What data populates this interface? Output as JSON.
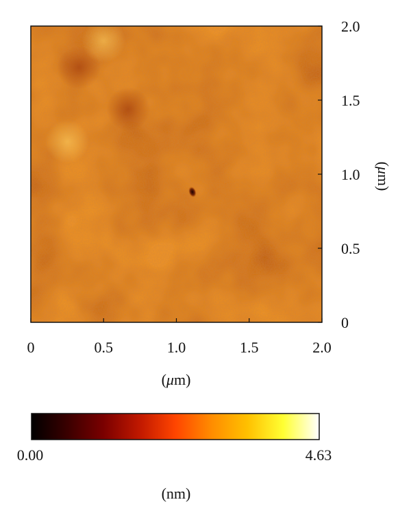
{
  "chart_data": [
    {
      "type": "heatmap",
      "title": "",
      "description_units": "height",
      "x": {
        "label_prefix": "(",
        "label_unit_symbol": "μ",
        "label_unit_rest": "m)",
        "range": [
          0,
          2.0
        ],
        "ticks": [
          "0",
          "0.5",
          "1.0",
          "1.5",
          "2.0"
        ]
      },
      "y": {
        "label_prefix": "(",
        "label_unit_symbol": "μ",
        "label_unit_rest": "m)",
        "range": [
          0,
          2.0
        ],
        "ticks": [
          "0",
          "0.5",
          "1.0",
          "1.5",
          "2.0"
        ],
        "side": "right"
      },
      "z_range_nm": [
        0.0,
        4.63
      ],
      "surface": {
        "base_height_nm": 3.3,
        "variation_nm": 0.35,
        "features": [
          {
            "kind": "pit",
            "x_um": 1.11,
            "y_um": 0.88,
            "depth_nm": 3.8
          },
          {
            "kind": "dark_patch",
            "x_um": 0.33,
            "y_um": 1.72,
            "depth_nm": 0.35
          },
          {
            "kind": "dark_patch",
            "x_um": 0.67,
            "y_um": 1.44,
            "depth_nm": 0.35
          },
          {
            "kind": "light_patch",
            "x_um": 0.25,
            "y_um": 1.22,
            "height_nm": 0.35
          },
          {
            "kind": "light_patch",
            "x_um": 0.5,
            "y_um": 1.9,
            "height_nm": 0.3
          }
        ]
      }
    },
    {
      "type": "colorbar",
      "min_label": "0.00",
      "max_label": "4.63",
      "unit_label": "(nm)",
      "range": [
        0.0,
        4.63
      ],
      "colors": [
        "#000000",
        "#3a0000",
        "#7a0000",
        "#c01800",
        "#ff4500",
        "#ff8c00",
        "#ffc000",
        "#ffff33",
        "#ffffff"
      ]
    }
  ]
}
